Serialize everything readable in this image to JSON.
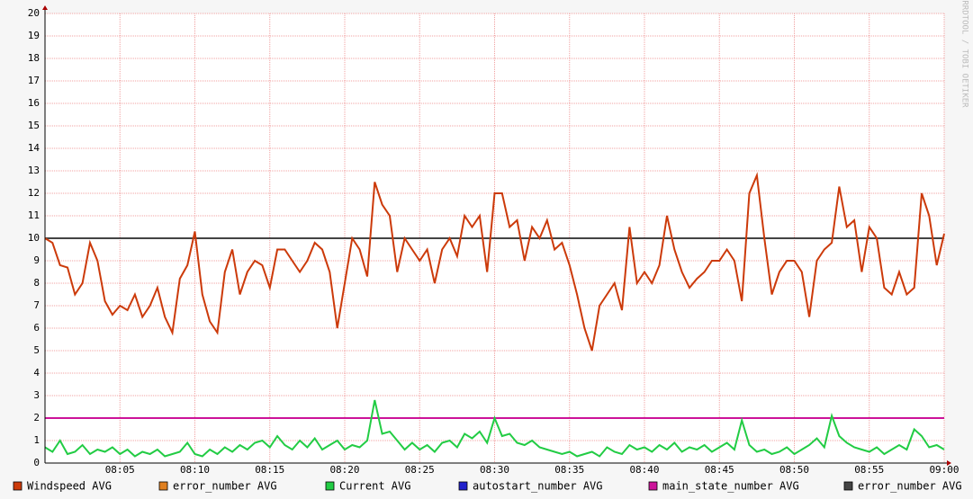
{
  "chart_data": {
    "type": "line",
    "watermark": "RRDTOOL / TOBI OETIKER",
    "x": [
      0,
      0.5,
      1,
      1.5,
      2,
      2.5,
      3,
      3.5,
      4,
      4.5,
      5,
      5.5,
      6,
      6.5,
      7,
      7.5,
      8,
      8.5,
      9,
      9.5,
      10,
      10.5,
      11,
      11.5,
      12,
      12.5,
      13,
      13.5,
      14,
      14.5,
      15,
      15.5,
      16,
      16.5,
      17,
      17.5,
      18,
      18.5,
      19,
      19.5,
      20,
      20.5,
      21,
      21.5,
      22,
      22.5,
      23,
      23.5,
      24,
      24.5,
      25,
      25.5,
      26,
      26.5,
      27,
      27.5,
      28,
      28.5,
      29,
      29.5,
      30,
      30.5,
      31,
      31.5,
      32,
      32.5,
      33,
      33.5,
      34,
      34.5,
      35,
      35.5,
      36,
      36.5,
      37,
      37.5,
      38,
      38.5,
      39,
      39.5,
      40,
      40.5,
      41,
      41.5,
      42,
      42.5,
      43,
      43.5,
      44,
      44.5,
      45,
      45.5,
      46,
      46.5,
      47,
      47.5,
      48,
      48.5,
      49,
      49.5,
      50,
      50.5,
      51,
      51.5,
      52,
      52.5,
      53,
      53.5,
      54,
      54.5,
      55,
      55.5,
      56,
      56.5,
      57,
      57.5,
      58,
      58.5,
      59,
      59.5,
      60
    ],
    "series": [
      {
        "name": "Windspeed AVG",
        "color": "#cc3a0a",
        "values": [
          10,
          9.8,
          8.8,
          8.7,
          7.5,
          8.0,
          9.8,
          9.0,
          7.2,
          6.6,
          7.0,
          6.8,
          7.5,
          6.5,
          7.0,
          7.8,
          6.5,
          5.8,
          8.2,
          8.8,
          10.3,
          7.5,
          6.3,
          5.8,
          8.5,
          9.5,
          7.5,
          8.5,
          9.0,
          8.8,
          7.8,
          9.5,
          9.5,
          9.0,
          8.5,
          9.0,
          9.8,
          9.5,
          8.5,
          6.0,
          8.0,
          10.0,
          9.5,
          8.3,
          12.5,
          11.5,
          11.0,
          8.5,
          10.0,
          9.5,
          9.0,
          9.5,
          8.0,
          9.5,
          10.0,
          9.2,
          11.0,
          10.5,
          11.0,
          8.5,
          12.0,
          12.0,
          10.5,
          10.8,
          9.0,
          10.5,
          10.0,
          10.8,
          9.5,
          9.8,
          8.8,
          7.5,
          6.0,
          5.0,
          7.0,
          7.5,
          8.0,
          6.8,
          10.5,
          8.0,
          8.5,
          8.0,
          8.8,
          11.0,
          9.5,
          8.5,
          7.8,
          8.2,
          8.5,
          9.0,
          9.0,
          9.5,
          9.0,
          7.2,
          12.0,
          12.8,
          10.0,
          7.5,
          8.5,
          9.0,
          9.0,
          8.5,
          6.5,
          9.0,
          9.5,
          9.8,
          12.3,
          10.5,
          10.8,
          8.5,
          10.5,
          10.0,
          7.8,
          7.5,
          8.5,
          7.5,
          7.8,
          12.0,
          11.0,
          8.8,
          10.2
        ]
      },
      {
        "name": "error_number AVG",
        "color": "#e08020",
        "values": [
          null,
          null,
          null,
          null,
          null,
          null,
          null,
          null,
          null,
          null,
          null,
          null,
          null,
          null,
          null,
          null,
          null,
          null,
          null,
          null,
          null,
          null,
          null,
          null,
          null,
          null,
          null,
          null,
          null,
          null,
          null,
          null,
          null,
          null,
          null,
          null,
          null,
          null,
          null,
          null,
          null,
          null,
          null,
          null,
          null,
          null,
          null,
          null,
          null,
          null,
          null,
          null,
          null,
          null,
          null,
          null,
          null,
          null,
          null,
          null,
          null,
          null,
          null,
          null,
          null,
          null,
          null,
          null,
          null,
          null,
          null,
          null,
          null,
          null,
          null,
          null,
          null,
          null,
          null,
          null,
          null,
          null,
          null,
          null,
          null,
          null,
          null,
          null,
          null,
          null,
          null,
          null,
          null,
          null,
          null,
          null,
          null,
          null,
          null,
          null,
          null,
          null,
          null,
          null,
          null,
          null,
          null,
          null,
          null,
          null,
          null,
          null,
          null,
          null,
          null,
          null,
          null,
          null,
          null,
          null,
          null
        ]
      },
      {
        "name": "Current AVG",
        "color": "#22cc44",
        "values": [
          0.7,
          0.5,
          1.0,
          0.4,
          0.5,
          0.8,
          0.4,
          0.6,
          0.5,
          0.7,
          0.4,
          0.6,
          0.3,
          0.5,
          0.4,
          0.6,
          0.3,
          0.4,
          0.5,
          0.9,
          0.4,
          0.3,
          0.6,
          0.4,
          0.7,
          0.5,
          0.8,
          0.6,
          0.9,
          1.0,
          0.7,
          1.2,
          0.8,
          0.6,
          1.0,
          0.7,
          1.1,
          0.6,
          0.8,
          1.0,
          0.6,
          0.8,
          0.7,
          1.0,
          2.8,
          1.3,
          1.4,
          1.0,
          0.6,
          0.9,
          0.6,
          0.8,
          0.5,
          0.9,
          1.0,
          0.7,
          1.3,
          1.1,
          1.4,
          0.9,
          2.0,
          1.2,
          1.3,
          0.9,
          0.8,
          1.0,
          0.7,
          0.6,
          0.5,
          0.4,
          0.5,
          0.3,
          0.4,
          0.5,
          0.3,
          0.7,
          0.5,
          0.4,
          0.8,
          0.6,
          0.7,
          0.5,
          0.8,
          0.6,
          0.9,
          0.5,
          0.7,
          0.6,
          0.8,
          0.5,
          0.7,
          0.9,
          0.6,
          1.9,
          0.8,
          0.5,
          0.6,
          0.4,
          0.5,
          0.7,
          0.4,
          0.6,
          0.8,
          1.1,
          0.7,
          2.1,
          1.2,
          0.9,
          0.7,
          0.6,
          0.5,
          0.7,
          0.4,
          0.6,
          0.8,
          0.6,
          1.5,
          1.2,
          0.7,
          0.8,
          0.6
        ]
      },
      {
        "name": "autostart_number AVG",
        "color": "#2020cc",
        "values": [
          null,
          null,
          null,
          null,
          null,
          null,
          null,
          null,
          null,
          null,
          null,
          null,
          null,
          null,
          null,
          null,
          null,
          null,
          null,
          null,
          null,
          null,
          null,
          null,
          null,
          null,
          null,
          null,
          null,
          null,
          null,
          null,
          null,
          null,
          null,
          null,
          null,
          null,
          null,
          null,
          null,
          null,
          null,
          null,
          null,
          null,
          null,
          null,
          null,
          null,
          null,
          null,
          null,
          null,
          null,
          null,
          null,
          null,
          null,
          null,
          null,
          null,
          null,
          null,
          null,
          null,
          null,
          null,
          null,
          null,
          null,
          null,
          null,
          null,
          null,
          null,
          null,
          null,
          null,
          null,
          null,
          null,
          null,
          null,
          null,
          null,
          null,
          null,
          null,
          null,
          null,
          null,
          null,
          null,
          null,
          null,
          null,
          null,
          null,
          null,
          null,
          null,
          null,
          null,
          null,
          null,
          null,
          null,
          null,
          null,
          null,
          null,
          null,
          null,
          null,
          null,
          null,
          null,
          null,
          null,
          null
        ]
      },
      {
        "name": "main_state_number AVG",
        "color": "#cc1399",
        "values": [
          2,
          2,
          2,
          2,
          2,
          2,
          2,
          2,
          2,
          2,
          2,
          2,
          2,
          2,
          2,
          2,
          2,
          2,
          2,
          2,
          2,
          2,
          2,
          2,
          2,
          2,
          2,
          2,
          2,
          2,
          2,
          2,
          2,
          2,
          2,
          2,
          2,
          2,
          2,
          2,
          2,
          2,
          2,
          2,
          2,
          2,
          2,
          2,
          2,
          2,
          2,
          2,
          2,
          2,
          2,
          2,
          2,
          2,
          2,
          2,
          2,
          2,
          2,
          2,
          2,
          2,
          2,
          2,
          2,
          2,
          2,
          2,
          2,
          2,
          2,
          2,
          2,
          2,
          2,
          2,
          2,
          2,
          2,
          2,
          2,
          2,
          2,
          2,
          2,
          2,
          2,
          2,
          2,
          2,
          2,
          2,
          2,
          2,
          2,
          2,
          2,
          2,
          2,
          2,
          2,
          2,
          2,
          2,
          2,
          2,
          2,
          2,
          2,
          2,
          2,
          2,
          2,
          2,
          2,
          2,
          2
        ]
      },
      {
        "name": "error_number AVG",
        "color": "#444444",
        "values": [
          10,
          10,
          10,
          10,
          10,
          10,
          10,
          10,
          10,
          10,
          10,
          10,
          10,
          10,
          10,
          10,
          10,
          10,
          10,
          10,
          10,
          10,
          10,
          10,
          10,
          10,
          10,
          10,
          10,
          10,
          10,
          10,
          10,
          10,
          10,
          10,
          10,
          10,
          10,
          10,
          10,
          10,
          10,
          10,
          10,
          10,
          10,
          10,
          10,
          10,
          10,
          10,
          10,
          10,
          10,
          10,
          10,
          10,
          10,
          10,
          10,
          10,
          10,
          10,
          10,
          10,
          10,
          10,
          10,
          10,
          10,
          10,
          10,
          10,
          10,
          10,
          10,
          10,
          10,
          10,
          10,
          10,
          10,
          10,
          10,
          10,
          10,
          10,
          10,
          10,
          10,
          10,
          10,
          10,
          10,
          10,
          10,
          10,
          10,
          10,
          10,
          10,
          10,
          10,
          10,
          10,
          10,
          10,
          10,
          10,
          10,
          10,
          10,
          10,
          10,
          10,
          10,
          10,
          10,
          10,
          10
        ]
      }
    ],
    "xlim": [
      0,
      60
    ],
    "xticks": [
      {
        "value": 5,
        "label": "08:05"
      },
      {
        "value": 10,
        "label": "08:10"
      },
      {
        "value": 15,
        "label": "08:15"
      },
      {
        "value": 20,
        "label": "08:20"
      },
      {
        "value": 25,
        "label": "08:25"
      },
      {
        "value": 30,
        "label": "08:30"
      },
      {
        "value": 35,
        "label": "08:35"
      },
      {
        "value": 40,
        "label": "08:40"
      },
      {
        "value": 45,
        "label": "08:45"
      },
      {
        "value": 50,
        "label": "08:50"
      },
      {
        "value": 55,
        "label": "08:55"
      },
      {
        "value": 60,
        "label": "09:00"
      }
    ],
    "ylim": [
      0,
      20
    ],
    "yticks": [
      0,
      1,
      2,
      3,
      4,
      5,
      6,
      7,
      8,
      9,
      10,
      11,
      12,
      13,
      14,
      15,
      16,
      17,
      18,
      19,
      20
    ],
    "grid": true
  }
}
